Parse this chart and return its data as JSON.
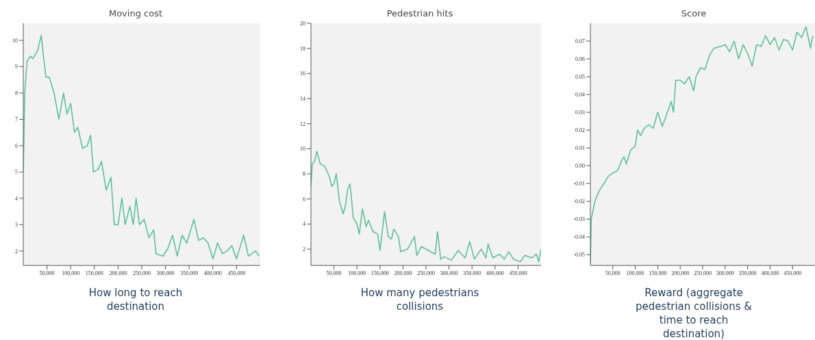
{
  "chart_data": [
    {
      "type": "line",
      "title": "Moving cost",
      "annotations": [
        "How long to reach destination"
      ],
      "xlim": [
        0,
        500000
      ],
      "ylim": [
        1.45,
        10.65
      ],
      "xticks": [
        {
          "value": 50000,
          "label": "50,000"
        },
        {
          "value": 100000,
          "label": "100,000"
        },
        {
          "value": 150000,
          "label": "150,000"
        },
        {
          "value": 200000,
          "label": "200,000"
        },
        {
          "value": 250000,
          "label": "250,000"
        },
        {
          "value": 300000,
          "label": "300,000"
        },
        {
          "value": 350000,
          "label": "350,000"
        },
        {
          "value": 400000,
          "label": "400,000"
        },
        {
          "value": 450000,
          "label": "450,000"
        }
      ],
      "yticks": [
        2,
        3,
        4,
        5,
        6,
        7,
        8,
        9,
        10
      ],
      "grid": false,
      "legend": false,
      "x": [
        0,
        3000,
        8000,
        15000,
        20000,
        30000,
        38000,
        43000,
        48000,
        55000,
        65000,
        75000,
        85000,
        92000,
        100000,
        108000,
        115000,
        125000,
        135000,
        142000,
        148000,
        158000,
        165000,
        175000,
        185000,
        192000,
        200000,
        208000,
        215000,
        225000,
        232000,
        238000,
        245000,
        255000,
        265000,
        275000,
        280000,
        295000,
        305000,
        315000,
        325000,
        335000,
        345000,
        360000,
        370000,
        380000,
        390000,
        400000,
        410000,
        420000,
        430000,
        440000,
        450000,
        465000,
        475000,
        490000,
        498000
      ],
      "series": [
        {
          "color": "#5cbf9b",
          "values": [
            5,
            8,
            9.2,
            9.4,
            9.3,
            9.6,
            10.2,
            9.3,
            8.6,
            8.6,
            8.0,
            7.0,
            8.0,
            7.2,
            7.6,
            6.5,
            6.7,
            5.9,
            6.0,
            6.4,
            5.0,
            5.1,
            5.4,
            4.3,
            4.8,
            3.0,
            3.0,
            4.0,
            3.0,
            3.7,
            3.0,
            4.0,
            3.0,
            3.2,
            2.5,
            2.8,
            1.9,
            1.8,
            2.1,
            2.6,
            1.8,
            2.6,
            2.3,
            3.2,
            2.4,
            2.5,
            2.3,
            1.7,
            2.3,
            1.9,
            2.0,
            2.2,
            1.7,
            2.6,
            1.8,
            2.0,
            1.8
          ]
        }
      ]
    },
    {
      "type": "line",
      "title": "Pedestrian hits",
      "annotations": [
        "How many pedestrians collisions"
      ],
      "xlim": [
        0,
        500000
      ],
      "ylim": [
        0.7,
        20
      ],
      "xticks": [
        {
          "value": 50000,
          "label": "50,000"
        },
        {
          "value": 100000,
          "label": "100,000"
        },
        {
          "value": 150000,
          "label": "150,000"
        },
        {
          "value": 200000,
          "label": "200,000"
        },
        {
          "value": 250000,
          "label": "250,000"
        },
        {
          "value": 300000,
          "label": "300,000"
        },
        {
          "value": 350000,
          "label": "350,000"
        },
        {
          "value": 400000,
          "label": "400,000"
        },
        {
          "value": 450000,
          "label": "450,000"
        }
      ],
      "yticks": [
        2,
        4,
        6,
        8,
        10,
        12,
        14,
        16,
        18,
        20
      ],
      "grid": false,
      "legend": false,
      "x": [
        0,
        3000,
        8000,
        13000,
        20000,
        30000,
        40000,
        45000,
        50000,
        55000,
        62000,
        70000,
        75000,
        80000,
        85000,
        92000,
        100000,
        105000,
        112000,
        120000,
        125000,
        135000,
        145000,
        150000,
        160000,
        168000,
        175000,
        180000,
        190000,
        195000,
        210000,
        225000,
        230000,
        240000,
        255000,
        270000,
        275000,
        282000,
        290000,
        305000,
        320000,
        335000,
        345000,
        355000,
        370000,
        380000,
        385000,
        395000,
        410000,
        420000,
        430000,
        440000,
        455000,
        465000,
        480000,
        490000,
        495000,
        500000
      ],
      "series": [
        {
          "color": "#5cbf9b",
          "values": [
            7,
            8.8,
            9.0,
            9.8,
            8.8,
            8.6,
            7.8,
            7.0,
            7.2,
            8.0,
            5.8,
            4.8,
            5.5,
            6.8,
            7.2,
            4.5,
            4.0,
            3.2,
            5.2,
            3.8,
            4.3,
            3.4,
            3.2,
            1.9,
            5.0,
            3.0,
            2.8,
            3.6,
            3.0,
            1.8,
            2.0,
            3.0,
            1.5,
            2.2,
            1.9,
            1.6,
            3.4,
            1.2,
            1.4,
            1.1,
            1.9,
            1.3,
            2.6,
            1.2,
            2.0,
            1.3,
            2.4,
            1.3,
            1.6,
            1.2,
            1.8,
            1.2,
            1.0,
            1.5,
            1.3,
            1.6,
            1.0,
            2.0
          ]
        }
      ]
    },
    {
      "type": "line",
      "title": "Score",
      "annotations": [
        "Reward (aggregate pedestrian collisions & time to reach destination)"
      ],
      "xlim": [
        0,
        500000
      ],
      "ylim": [
        -0.056,
        0.08
      ],
      "xticks": [
        {
          "value": 50000,
          "label": "50,000"
        },
        {
          "value": 100000,
          "label": "100,000"
        },
        {
          "value": 150000,
          "label": "150,000"
        },
        {
          "value": 200000,
          "label": "200,000"
        },
        {
          "value": 250000,
          "label": "250,000"
        },
        {
          "value": 300000,
          "label": "300,000"
        },
        {
          "value": 350000,
          "label": "350,000"
        },
        {
          "value": 400000,
          "label": "400,000"
        },
        {
          "value": 450000,
          "label": "450,000"
        }
      ],
      "yticks": [
        {
          "value": -0.05,
          "label": "-0.05"
        },
        {
          "value": -0.04,
          "label": "-0.04"
        },
        {
          "value": -0.03,
          "label": "-0.03"
        },
        {
          "value": -0.02,
          "label": "-0.02"
        },
        {
          "value": -0.01,
          "label": "-0.01"
        },
        {
          "value": 0,
          "label": "0.00"
        },
        {
          "value": 0.01,
          "label": "0.01"
        },
        {
          "value": 0.02,
          "label": "0.02"
        },
        {
          "value": 0.03,
          "label": "0.03"
        },
        {
          "value": 0.04,
          "label": "0.04"
        },
        {
          "value": 0.05,
          "label": "0.05"
        },
        {
          "value": 0.06,
          "label": "0.06"
        },
        {
          "value": 0.07,
          "label": "0.07"
        }
      ],
      "grid": false,
      "legend": false,
      "x": [
        0,
        2000,
        10000,
        20000,
        30000,
        40000,
        50000,
        60000,
        70000,
        75000,
        80000,
        90000,
        100000,
        105000,
        112000,
        120000,
        130000,
        140000,
        150000,
        160000,
        170000,
        180000,
        185000,
        190000,
        200000,
        210000,
        220000,
        230000,
        235000,
        245000,
        255000,
        265000,
        275000,
        290000,
        300000,
        310000,
        320000,
        330000,
        340000,
        350000,
        360000,
        370000,
        380000,
        390000,
        400000,
        410000,
        420000,
        430000,
        440000,
        450000,
        460000,
        470000,
        480000,
        490000,
        495000
      ],
      "series": [
        {
          "color": "#5cbf9b",
          "values": [
            -0.055,
            -0.03,
            -0.02,
            -0.014,
            -0.01,
            -0.006,
            -0.004,
            -0.003,
            0.003,
            0.005,
            0.001,
            0.009,
            0.011,
            0.02,
            0.017,
            0.021,
            0.023,
            0.021,
            0.03,
            0.022,
            0.029,
            0.036,
            0.03,
            0.048,
            0.048,
            0.046,
            0.05,
            0.042,
            0.05,
            0.055,
            0.054,
            0.062,
            0.066,
            0.067,
            0.068,
            0.064,
            0.07,
            0.06,
            0.068,
            0.063,
            0.056,
            0.068,
            0.067,
            0.073,
            0.068,
            0.072,
            0.065,
            0.071,
            0.07,
            0.065,
            0.075,
            0.072,
            0.078,
            0.066,
            0.073
          ]
        }
      ]
    }
  ]
}
